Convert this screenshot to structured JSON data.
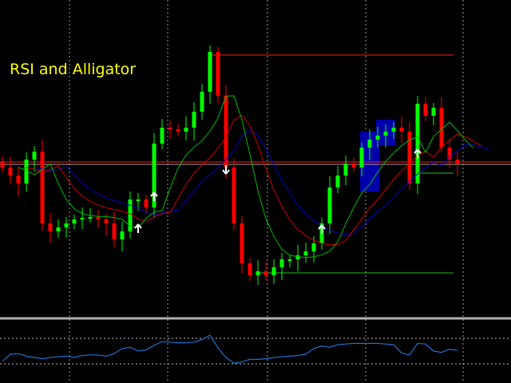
{
  "title": "RSI and Alligator",
  "colors": {
    "background": "#000000",
    "bull": "#00ff00",
    "bear": "#ff0000",
    "jaw": "#0000cc",
    "teeth": "#cc0000",
    "lips": "#00bb00",
    "rsi": "#1e6fd0",
    "grid": "#c0c0c0",
    "zone": "#0000aa",
    "arrow": "#ffffff",
    "title": "#ffff00"
  },
  "chart_data": [
    {
      "type": "candlestick",
      "title": "RSI and Alligator",
      "indicators": [
        "Alligator jaw",
        "Alligator teeth",
        "Alligator lips"
      ],
      "grid": true,
      "close": [
        190,
        180,
        170,
        200,
        210,
        120,
        110,
        115,
        120,
        125,
        127,
        128,
        125,
        120,
        100,
        110,
        150,
        150,
        140,
        220,
        240,
        238,
        235,
        240,
        260,
        285,
        335,
        280,
        190,
        120,
        70,
        55,
        60,
        55,
        65,
        75,
        75,
        80,
        85,
        95,
        120,
        165,
        180,
        195,
        190,
        215,
        225,
        230,
        235,
        240,
        235,
        170,
        270,
        255,
        265,
        215,
        200,
        195
      ],
      "levels": [
        {
          "price": 331,
          "color": "#ff2020",
          "from": 26
        },
        {
          "price": 58,
          "color": "#20c020",
          "from": 32
        },
        {
          "price": 197,
          "color": "#ff2020",
          "from": 0
        },
        {
          "price": 194,
          "color": "#a0a0a0",
          "from": 0
        },
        {
          "price": 183,
          "color": "#20c020",
          "from": 52
        }
      ],
      "zones": [
        {
          "from": 45,
          "to": 47,
          "low": 160,
          "high": 235
        },
        {
          "from": 47,
          "to": 49,
          "low": 218,
          "high": 250
        }
      ],
      "arrows": [
        {
          "index": 17,
          "dir": "up",
          "price": 113
        },
        {
          "index": 19,
          "dir": "up",
          "price": 153
        },
        {
          "index": 28,
          "dir": "down",
          "price": 188
        },
        {
          "index": 40,
          "dir": "up",
          "price": 112
        },
        {
          "index": 52,
          "dir": "up",
          "price": 207
        }
      ]
    },
    {
      "type": "line",
      "title": "",
      "levels": [
        70,
        30
      ],
      "ylim": [
        0,
        100
      ],
      "series": [
        {
          "values": [
            34,
            45,
            46,
            42,
            40,
            38,
            40,
            41,
            42,
            40,
            43,
            44,
            44,
            42,
            46,
            54,
            56,
            50,
            52,
            59,
            65,
            64,
            63,
            63,
            64,
            68,
            75,
            55,
            40,
            31,
            33,
            37,
            37,
            38,
            40,
            41,
            42,
            43,
            45,
            54,
            58,
            56,
            60,
            61,
            62,
            62,
            62,
            62,
            61,
            60,
            47,
            44,
            62,
            61,
            50,
            48,
            53,
            51
          ]
        }
      ]
    }
  ]
}
